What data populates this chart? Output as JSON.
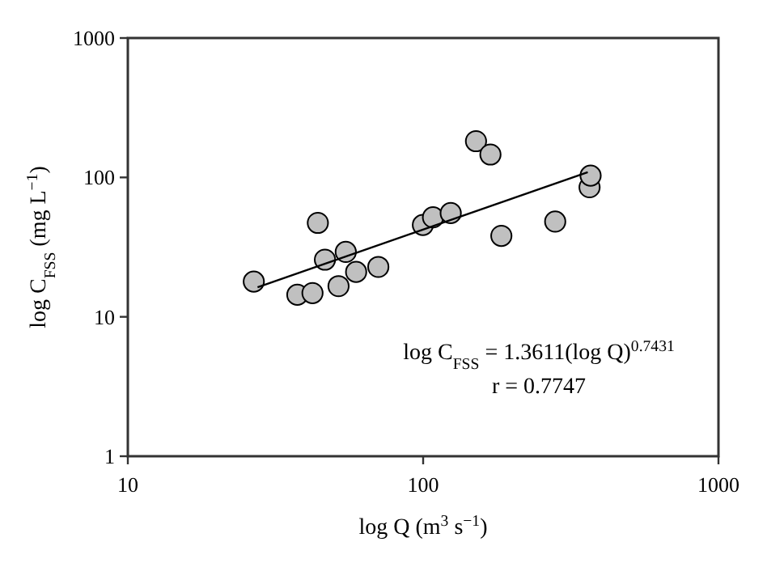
{
  "chart_data": {
    "type": "scatter",
    "xlabel": "log Q (m$^{3}$ s$^{−1}$)",
    "ylabel": "log C$_{FSS}$ (mg L$^{−1}$)",
    "log": "xy",
    "xlim": [
      10,
      1000
    ],
    "ylim": [
      1,
      1000
    ],
    "xticks": [
      10,
      100,
      1000
    ],
    "yticks": [
      1,
      10,
      100,
      1000
    ],
    "grid": false,
    "series": [
      {
        "color": "#c0c0c0",
        "marker": "circle",
        "x": [
          26.7,
          37.5,
          42.2,
          44,
          46.5,
          51.7,
          54.7,
          59.3,
          70.5,
          99.8,
          108,
          124,
          151,
          169,
          184,
          280,
          366,
          369
        ],
        "values": [
          17.9,
          14.4,
          14.8,
          47.2,
          25.7,
          16.6,
          29.2,
          21.0,
          22.8,
          45.6,
          51.7,
          55.5,
          182,
          146,
          38.1,
          48.2,
          85,
          103
        ]
      },
      {
        "type": "line",
        "color": "#000000",
        "marker": "none",
        "line_style": "solid",
        "x": [
          27.5,
          361
        ],
        "values": [
          16.3,
          109
        ]
      }
    ],
    "annotations": [
      "log C$_{FSS}$ = 1.3611(log Q)$^{0.7431}$",
      "r = 0.7747"
    ]
  }
}
